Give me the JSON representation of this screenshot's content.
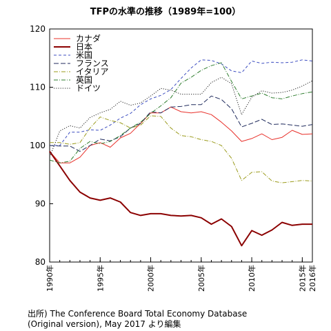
{
  "title": "TFPの水準の推移（1989年=100）",
  "source": {
    "line1": "出所) The Conference Board Total Economy Database",
    "line2": "(Original version), May 2017 より編集"
  },
  "chart_data": {
    "type": "line",
    "title": "TFPの水準の推移（1989年=100）",
    "xlabel": "",
    "ylabel": "",
    "xlim": [
      1990,
      2016
    ],
    "ylim": [
      80,
      120
    ],
    "y_ticks": [
      80,
      90,
      100,
      110,
      120
    ],
    "x_ticks": [
      {
        "value": 1990,
        "label": "1990年"
      },
      {
        "value": 1995,
        "label": "1995年"
      },
      {
        "value": 2000,
        "label": "2000年"
      },
      {
        "value": 2005,
        "label": "2005年"
      },
      {
        "value": 2010,
        "label": "2010年"
      },
      {
        "value": 2015,
        "label": "2015年"
      },
      {
        "value": 2016,
        "label": "2016年"
      }
    ],
    "legend_position": "top-left",
    "grid": false,
    "x": [
      1990,
      1991,
      1992,
      1993,
      1994,
      1995,
      1996,
      1997,
      1998,
      1999,
      2000,
      2001,
      2002,
      2003,
      2004,
      2005,
      2006,
      2007,
      2008,
      2009,
      2010,
      2011,
      2012,
      2013,
      2014,
      2015,
      2016
    ],
    "series": [
      {
        "name": "カナダ",
        "color": "#e8302a",
        "dash": "solid",
        "width": 1,
        "values": [
          99.0,
          97.0,
          97.0,
          98.0,
          100.0,
          100.5,
          99.7,
          101.3,
          102.1,
          103.8,
          105.6,
          105.6,
          106.6,
          105.8,
          105.6,
          105.8,
          105.3,
          104.0,
          102.5,
          100.7,
          101.2,
          102.0,
          101.0,
          101.4,
          102.6,
          101.9,
          102.0
        ]
      },
      {
        "name": "日本",
        "color": "#8b0000",
        "dash": "solid",
        "width": 2,
        "values": [
          99.0,
          96.5,
          94.0,
          92.0,
          91.0,
          90.6,
          91.0,
          90.3,
          88.5,
          88.0,
          88.3,
          88.3,
          88.0,
          87.9,
          88.0,
          87.6,
          86.5,
          87.4,
          86.1,
          82.8,
          85.4,
          84.6,
          85.5,
          86.8,
          86.3,
          86.5,
          86.5
        ]
      },
      {
        "name": "米国",
        "color": "#3b4cc0",
        "dash": "dashed",
        "width": 1,
        "values": [
          100.0,
          100.0,
          102.3,
          102.3,
          102.7,
          102.6,
          103.5,
          104.7,
          105.5,
          107.0,
          108.0,
          108.6,
          109.6,
          111.5,
          113.3,
          114.7,
          114.6,
          114.0,
          112.8,
          112.5,
          114.5,
          114.1,
          114.3,
          114.2,
          114.3,
          114.7,
          114.5
        ]
      },
      {
        "name": "フランス",
        "color": "#1f2a5c",
        "dash": "longdash",
        "width": 1,
        "values": [
          100.0,
          99.9,
          99.9,
          99.0,
          100.0,
          101.1,
          100.8,
          101.5,
          103.0,
          103.8,
          105.8,
          105.6,
          106.6,
          106.7,
          107.0,
          107.0,
          108.5,
          107.9,
          106.3,
          103.2,
          103.8,
          104.5,
          103.6,
          103.7,
          103.5,
          103.3,
          103.6
        ]
      },
      {
        "name": "イタリア",
        "color": "#9a9a1a",
        "dash": "dashdot",
        "width": 1,
        "values": [
          100.5,
          100.5,
          100.2,
          100.5,
          103.0,
          104.9,
          104.3,
          103.9,
          103.0,
          103.5,
          105.1,
          105.0,
          103.0,
          101.7,
          101.5,
          101.0,
          100.7,
          100.0,
          97.8,
          94.0,
          95.4,
          95.5,
          93.9,
          93.6,
          93.8,
          94.0,
          93.9
        ]
      },
      {
        "name": "英国",
        "color": "#2e7d2e",
        "dash": "dashdot",
        "width": 1,
        "values": [
          97.5,
          97.0,
          97.3,
          99.5,
          100.7,
          100.3,
          100.7,
          101.7,
          103.0,
          104.0,
          105.5,
          106.8,
          108.2,
          110.7,
          111.7,
          112.9,
          113.7,
          114.2,
          111.0,
          108.0,
          108.5,
          109.0,
          108.2,
          108.0,
          108.5,
          108.9,
          109.2
        ]
      },
      {
        "name": "ドイツ",
        "color": "#222222",
        "dash": "dotted",
        "width": 1,
        "values": [
          98.0,
          102.5,
          103.4,
          103.0,
          104.8,
          105.6,
          106.2,
          107.6,
          106.9,
          107.3,
          108.5,
          109.8,
          109.5,
          108.8,
          108.8,
          108.8,
          110.8,
          111.7,
          110.6,
          105.3,
          108.3,
          109.4,
          109.0,
          109.1,
          109.5,
          110.2,
          111.1
        ]
      }
    ]
  }
}
